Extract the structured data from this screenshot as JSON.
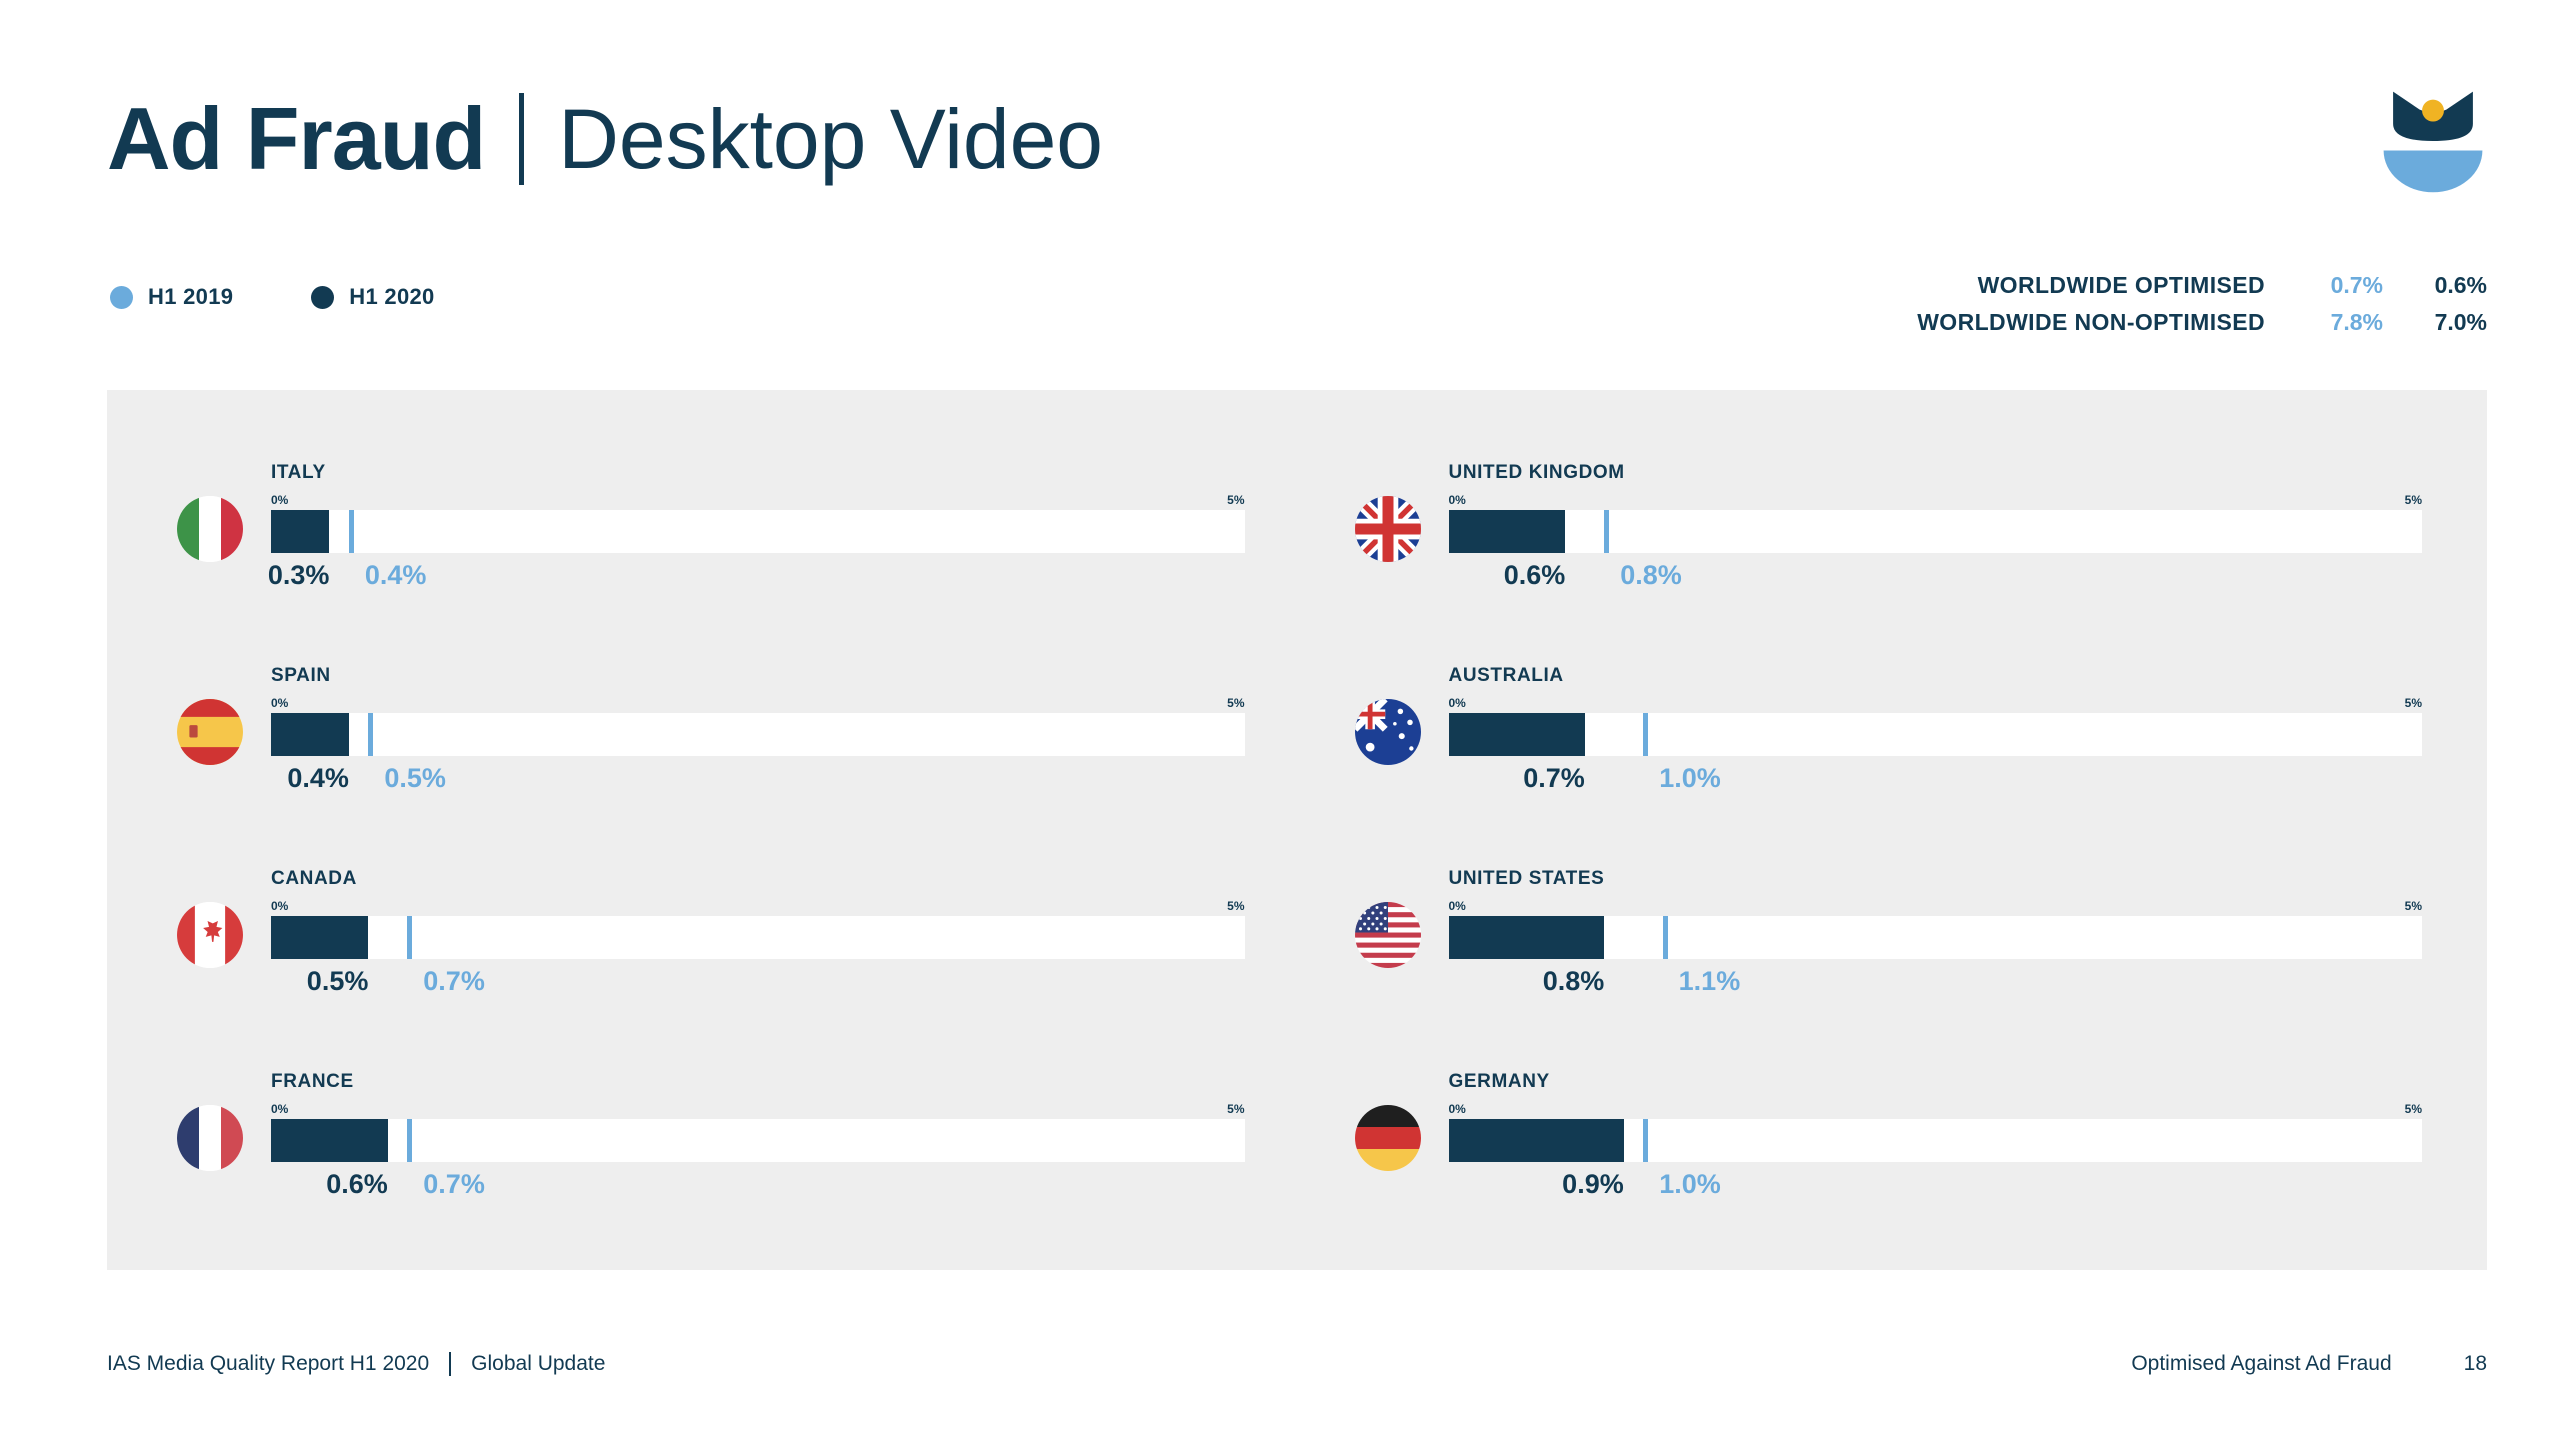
{
  "page": {
    "title_bold": "Ad Fraud",
    "title_light": "Desktop Video"
  },
  "legend": {
    "items": [
      {
        "label": "H1 2019",
        "color": "#6babdc"
      },
      {
        "label": "H1 2020",
        "color": "#123a52"
      }
    ]
  },
  "worldwide": {
    "rows": [
      {
        "label": "WORLDWIDE OPTIMISED",
        "h1_2019": "0.7%",
        "h1_2020": "0.6%"
      },
      {
        "label": "WORLDWIDE NON-OPTIMISED",
        "h1_2019": "7.8%",
        "h1_2020": "7.0%"
      }
    ]
  },
  "chart_data": {
    "type": "bar",
    "title": "Ad Fraud — Desktop Video",
    "series": [
      "H1 2019",
      "H1 2020"
    ],
    "unit": "%",
    "axis": {
      "min": 0,
      "max": 5,
      "min_label": "0%",
      "max_label": "5%"
    },
    "colors": {
      "H1 2019": "#6babdc",
      "H1 2020": "#123a52"
    },
    "legend_position": "top-left",
    "countries": [
      {
        "name": "ITALY",
        "h1_2019": 0.4,
        "h1_2020": 0.3,
        "h1_2019_label": "0.4%",
        "h1_2020_label": "0.3%"
      },
      {
        "name": "UNITED KINGDOM",
        "h1_2019": 0.8,
        "h1_2020": 0.6,
        "h1_2019_label": "0.8%",
        "h1_2020_label": "0.6%"
      },
      {
        "name": "SPAIN",
        "h1_2019": 0.5,
        "h1_2020": 0.4,
        "h1_2019_label": "0.5%",
        "h1_2020_label": "0.4%"
      },
      {
        "name": "AUSTRALIA",
        "h1_2019": 1.0,
        "h1_2020": 0.7,
        "h1_2019_label": "1.0%",
        "h1_2020_label": "0.7%"
      },
      {
        "name": "CANADA",
        "h1_2019": 0.7,
        "h1_2020": 0.5,
        "h1_2019_label": "0.7%",
        "h1_2020_label": "0.5%"
      },
      {
        "name": "UNITED STATES",
        "h1_2019": 1.1,
        "h1_2020": 0.8,
        "h1_2019_label": "1.1%",
        "h1_2020_label": "0.8%"
      },
      {
        "name": "FRANCE",
        "h1_2019": 0.7,
        "h1_2020": 0.6,
        "h1_2019_label": "0.7%",
        "h1_2020_label": "0.6%"
      },
      {
        "name": "GERMANY",
        "h1_2019": 1.0,
        "h1_2020": 0.9,
        "h1_2019_label": "1.0%",
        "h1_2020_label": "0.9%"
      }
    ]
  },
  "footer": {
    "report": "IAS Media Quality Report H1 2020",
    "section": "Global Update",
    "right_label": "Optimised Against Ad Fraud",
    "page_number": "18"
  }
}
